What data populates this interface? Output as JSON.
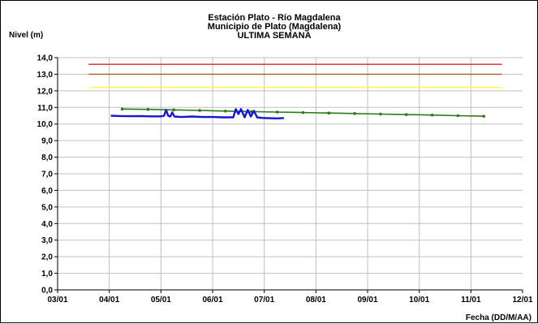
{
  "chart_data": {
    "type": "line",
    "title_lines": [
      "Estación Plato - Río Magdalena",
      "Municipio de Plato (Magdalena)",
      "ULTIMA SEMANA"
    ],
    "ylabel": "Nivel (m)",
    "xlabel": "Fecha (DD/M/AA)",
    "ylim": [
      0,
      14
    ],
    "xlim": [
      0,
      9
    ],
    "y_ticks": [
      "0,0",
      "1,0",
      "2,0",
      "3,0",
      "4,0",
      "5,0",
      "6,0",
      "7,0",
      "8,0",
      "9,0",
      "10,0",
      "11,0",
      "12,0",
      "13,0",
      "14,0"
    ],
    "x_ticks": [
      "03/01",
      "04/01",
      "05/01",
      "06/01",
      "07/01",
      "08/01",
      "09/01",
      "10/01",
      "11/01",
      "12/01"
    ],
    "grid": true,
    "thresholds": [
      {
        "value": 13.6,
        "x_start": 0.6,
        "x_end": 8.6,
        "color": "#e02020"
      },
      {
        "value": 13.0,
        "x_start": 0.6,
        "x_end": 8.6,
        "color": "#a0662a"
      },
      {
        "value": 12.2,
        "x_start": 0.6,
        "x_end": 8.6,
        "color": "#ffff33"
      }
    ],
    "series": [
      {
        "color": "#2a7a1a",
        "markers": true,
        "points": [
          [
            1.25,
            10.9
          ],
          [
            1.75,
            10.88
          ],
          [
            2.25,
            10.85
          ],
          [
            2.75,
            10.82
          ],
          [
            3.25,
            10.78
          ],
          [
            3.75,
            10.75
          ],
          [
            4.25,
            10.72
          ],
          [
            4.75,
            10.69
          ],
          [
            5.25,
            10.66
          ],
          [
            5.75,
            10.63
          ],
          [
            6.25,
            10.6
          ],
          [
            6.75,
            10.57
          ],
          [
            7.25,
            10.54
          ],
          [
            7.75,
            10.5
          ],
          [
            8.25,
            10.47
          ]
        ]
      },
      {
        "color": "#1515d6",
        "markers": false,
        "points": [
          [
            1.03,
            10.5
          ],
          [
            1.2,
            10.48
          ],
          [
            1.4,
            10.47
          ],
          [
            1.6,
            10.48
          ],
          [
            1.8,
            10.46
          ],
          [
            2.0,
            10.46
          ],
          [
            2.06,
            10.5
          ],
          [
            2.1,
            10.85
          ],
          [
            2.14,
            10.5
          ],
          [
            2.18,
            10.45
          ],
          [
            2.22,
            10.7
          ],
          [
            2.26,
            10.45
          ],
          [
            2.4,
            10.42
          ],
          [
            2.6,
            10.45
          ],
          [
            2.8,
            10.42
          ],
          [
            3.0,
            10.42
          ],
          [
            3.2,
            10.4
          ],
          [
            3.4,
            10.4
          ],
          [
            3.45,
            10.9
          ],
          [
            3.5,
            10.6
          ],
          [
            3.55,
            10.9
          ],
          [
            3.62,
            10.4
          ],
          [
            3.68,
            10.85
          ],
          [
            3.74,
            10.45
          ],
          [
            3.8,
            10.8
          ],
          [
            3.86,
            10.4
          ],
          [
            3.95,
            10.37
          ],
          [
            4.1,
            10.35
          ],
          [
            4.25,
            10.34
          ],
          [
            4.38,
            10.36
          ]
        ]
      }
    ]
  }
}
